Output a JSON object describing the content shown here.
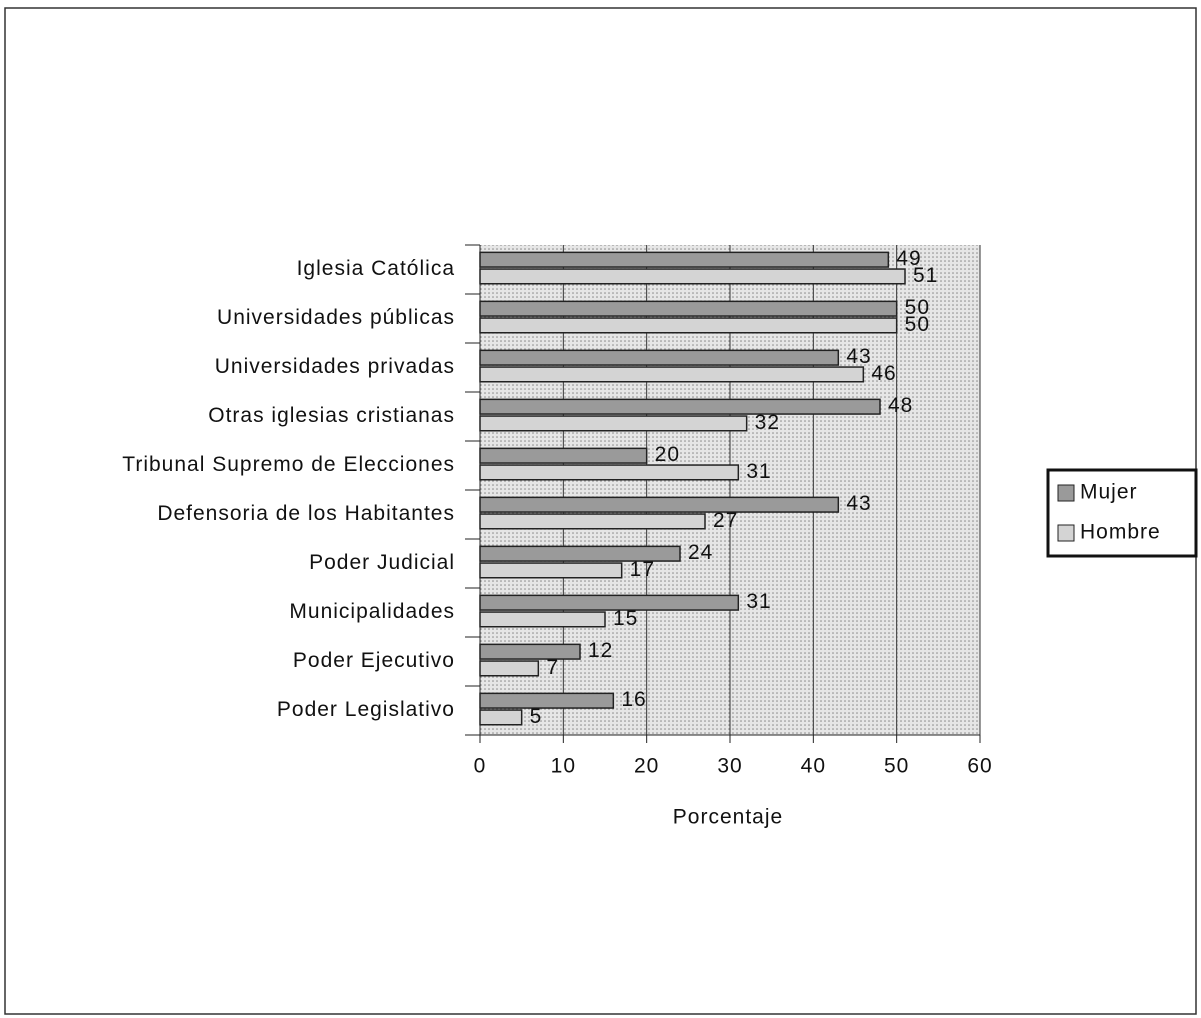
{
  "chart_data": {
    "type": "bar",
    "orientation": "horizontal",
    "categories": [
      "Iglesia Católica",
      "Universidades públicas",
      "Universidades privadas",
      "Otras iglesias cristianas",
      "Tribunal Supremo de Elecciones",
      "Defensoria de los Habitantes",
      "Poder Judicial",
      "Municipalidades",
      "Poder Ejecutivo",
      "Poder Legislativo"
    ],
    "series": [
      {
        "name": "Mujer",
        "color": "#9a9a9a",
        "values": [
          49,
          50,
          43,
          48,
          20,
          43,
          24,
          31,
          12,
          16
        ]
      },
      {
        "name": "Hombre",
        "color": "#d4d4d4",
        "values": [
          51,
          50,
          46,
          32,
          31,
          27,
          17,
          15,
          7,
          5
        ]
      }
    ],
    "xlim": [
      0,
      60
    ],
    "xticks": [
      0,
      10,
      20,
      30,
      40,
      50,
      60
    ],
    "x_label": "Porcentaje",
    "grid": true,
    "legend": "right"
  }
}
